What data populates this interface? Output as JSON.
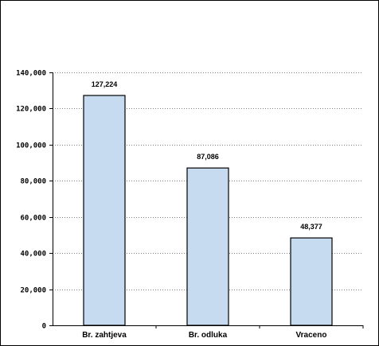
{
  "chart_data": {
    "type": "bar",
    "categories": [
      "Br. zahtjeva",
      "Br. odluka",
      "Vraceno"
    ],
    "values": [
      127224,
      87086,
      48377
    ],
    "data_labels": [
      "127,224",
      "87,086",
      "48,377"
    ],
    "y_tick_labels": [
      "0",
      "20,000",
      "40,000",
      "60,000",
      "80,000",
      "100,000",
      "120,000",
      "140,000"
    ],
    "y_ticks": [
      0,
      20000,
      40000,
      60000,
      80000,
      100000,
      120000,
      140000
    ],
    "ylim": [
      0,
      140000
    ],
    "title": "",
    "xlabel": "",
    "ylabel": "",
    "grid": true,
    "legend": "none",
    "colors": {
      "bar_fill": "#c6dbef",
      "bar_stroke": "#000000",
      "grid": "#808080"
    }
  }
}
